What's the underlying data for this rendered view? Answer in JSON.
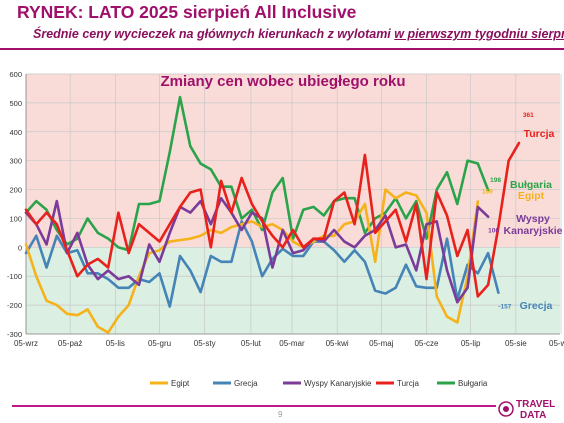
{
  "header": {
    "title": "RYNEK: LATO 2025 sierpień All Inclusive",
    "subtitle_prefix": "Średnie ceny wycieczek na głównych kierunkach z wylotami ",
    "subtitle_emph": "w pierwszym tygodniu sierpnia"
  },
  "footer": {
    "page_number": "9",
    "logo_top": "TRAVEL",
    "logo_bottom": "DATA"
  },
  "colors": {
    "brand": "#a0106a",
    "positive_zone": "#f9dcd8",
    "negative_zone": "#dcefe3"
  },
  "chart_data": {
    "type": "line",
    "title": "Zmiany cen wobec ubiegłego roku",
    "ylim": [
      -300,
      600
    ],
    "yticks": [
      -300,
      -200,
      -100,
      0,
      100,
      200,
      300,
      400,
      500,
      600
    ],
    "x_range": [
      0,
      52
    ],
    "xticks": [
      "05-wrz",
      "05-paź",
      "05-lis",
      "05-gru",
      "05-sty",
      "05-lut",
      "05-mar",
      "05-kwi",
      "05-maj",
      "05-cze",
      "05-lip",
      "05-sie",
      "05-wrz"
    ],
    "xtick_positions": [
      0,
      4.3,
      8.7,
      13,
      17.4,
      21.9,
      25.9,
      30.3,
      34.6,
      39,
      43.3,
      47.7,
      52.1
    ],
    "grid": true,
    "legend_position": "bottom",
    "series": [
      {
        "name": "Egipt",
        "color": "#f5b21b",
        "values": [
          10,
          -100,
          -185,
          -200,
          -230,
          -235,
          -215,
          -275,
          -295,
          -240,
          -200,
          -100,
          -20,
          -10,
          20,
          25,
          30,
          40,
          60,
          50,
          70,
          80,
          90,
          70,
          80,
          60,
          20,
          0,
          20,
          40,
          40,
          80,
          90,
          150,
          -50,
          200,
          170,
          190,
          180,
          120,
          -170,
          -240,
          -260,
          -100,
          159
        ]
      },
      {
        "name": "Grecja",
        "color": "#4584b6",
        "values": [
          -20,
          40,
          -70,
          40,
          -20,
          -10,
          -90,
          -90,
          -110,
          -140,
          -140,
          -110,
          -120,
          -90,
          -205,
          -30,
          -80,
          -155,
          -30,
          -50,
          -50,
          90,
          20,
          -100,
          -40,
          -5,
          -30,
          -30,
          20,
          20,
          -10,
          -50,
          -10,
          -50,
          -150,
          -160,
          -140,
          -60,
          -135,
          -140,
          -140,
          30,
          -180,
          -60,
          -90,
          -20,
          -157
        ]
      },
      {
        "name": "Wyspy Kanaryjskie",
        "color": "#7a3b99",
        "values": [
          120,
          80,
          10,
          160,
          -20,
          50,
          -60,
          -110,
          -80,
          -110,
          -100,
          -130,
          10,
          -50,
          50,
          140,
          120,
          160,
          80,
          170,
          120,
          60,
          120,
          100,
          -70,
          60,
          -20,
          -10,
          30,
          20,
          60,
          20,
          0,
          40,
          60,
          110,
          0,
          10,
          -80,
          80,
          90,
          -80,
          -190,
          -140,
          140,
          106
        ]
      },
      {
        "name": "Turcja",
        "color": "#e8211c",
        "values": [
          130,
          80,
          120,
          80,
          -10,
          -100,
          -60,
          -40,
          -70,
          120,
          -20,
          80,
          50,
          20,
          80,
          140,
          190,
          200,
          0,
          230,
          120,
          240,
          150,
          90,
          40,
          0,
          60,
          0,
          30,
          30,
          160,
          190,
          80,
          320,
          50,
          90,
          130,
          20,
          150,
          -110,
          190,
          110,
          -30,
          60,
          -170,
          -130,
          70,
          300,
          361
        ]
      },
      {
        "name": "Bułgaria",
        "color": "#2aa34a",
        "values": [
          120,
          160,
          130,
          60,
          10,
          30,
          100,
          50,
          30,
          0,
          -10,
          150,
          150,
          160,
          330,
          520,
          350,
          290,
          270,
          210,
          210,
          100,
          130,
          60,
          190,
          240,
          30,
          130,
          140,
          110,
          160,
          170,
          170,
          50,
          100,
          120,
          170,
          100,
          160,
          30,
          200,
          260,
          150,
          300,
          290,
          198
        ]
      }
    ],
    "end_labels": [
      {
        "series": "Turcja",
        "value_label": "361",
        "name_label": "Turcja"
      },
      {
        "series": "Bułgaria",
        "value_label": "198",
        "name_label": "Bułgaria"
      },
      {
        "series": "Egipt",
        "value_label": "159",
        "name_label": "Egipt"
      },
      {
        "series": "Wyspy Kanaryjskie",
        "value_label": "106",
        "name_label": "Wyspy\nKanaryjskie"
      },
      {
        "series": "Grecja",
        "value_label": "-157",
        "name_label": "Grecja"
      }
    ]
  }
}
